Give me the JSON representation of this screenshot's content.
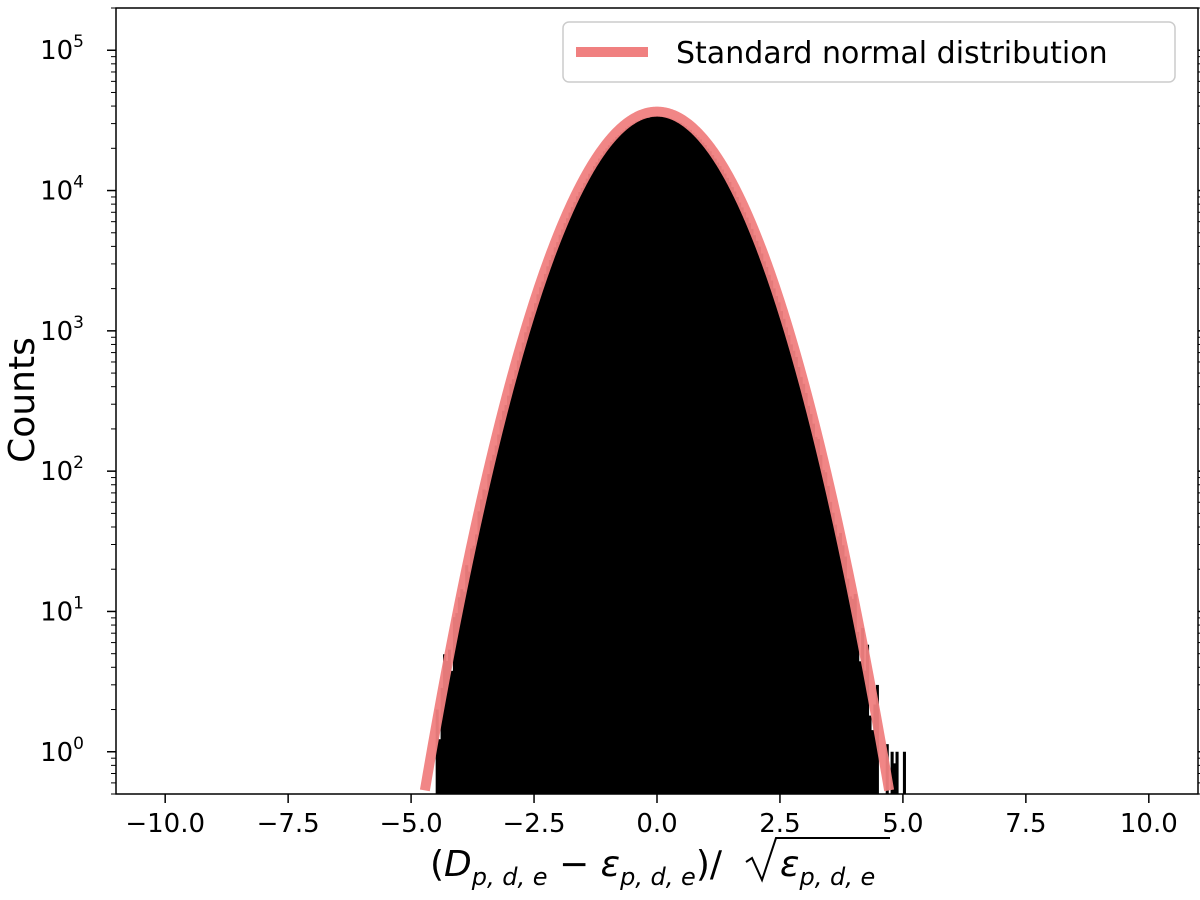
{
  "chart_data": {
    "type": "histogram",
    "xscale": "linear",
    "yscale": "log",
    "xlim": [
      -11,
      11
    ],
    "ylim": [
      0.5,
      200000
    ],
    "ylabel": "Counts",
    "xlabel_parts": {
      "open": "(",
      "D": "D",
      "D_sub": "p, d, e",
      "minus": " − ",
      "eps": "ε",
      "eps_sub": "p, d, e",
      "close": ")/",
      "sqrt_eps": "ε",
      "sqrt_sub": "p, d, e"
    },
    "x_ticks": [
      {
        "value": -10,
        "label": "−10.0"
      },
      {
        "value": -7.5,
        "label": "−7.5"
      },
      {
        "value": -5,
        "label": "−5.0"
      },
      {
        "value": -2.5,
        "label": "−2.5"
      },
      {
        "value": 0,
        "label": "0.0"
      },
      {
        "value": 2.5,
        "label": "2.5"
      },
      {
        "value": 5,
        "label": "5.0"
      },
      {
        "value": 7.5,
        "label": "7.5"
      },
      {
        "value": 10,
        "label": "10.0"
      }
    ],
    "y_ticks": [
      {
        "exp": 0,
        "base": "10",
        "sup": "0"
      },
      {
        "exp": 1,
        "base": "10",
        "sup": "1"
      },
      {
        "exp": 2,
        "base": "10",
        "sup": "2"
      },
      {
        "exp": 3,
        "base": "10",
        "sup": "3"
      },
      {
        "exp": 4,
        "base": "10",
        "sup": "4"
      },
      {
        "exp": 5,
        "base": "10",
        "sup": "5"
      }
    ],
    "histogram": {
      "bin_width": 0.05,
      "peak_count": 33800,
      "range": [
        -4.5,
        5.0
      ],
      "color": "#000000",
      "sigma": 1.0
    },
    "series": [
      {
        "name": "Standard normal distribution",
        "type": "line",
        "peak_count": 36500,
        "sigma": 1.0,
        "color": "#f08080"
      }
    ],
    "legend": {
      "position": "top-right",
      "label": "Standard normal distribution"
    }
  }
}
